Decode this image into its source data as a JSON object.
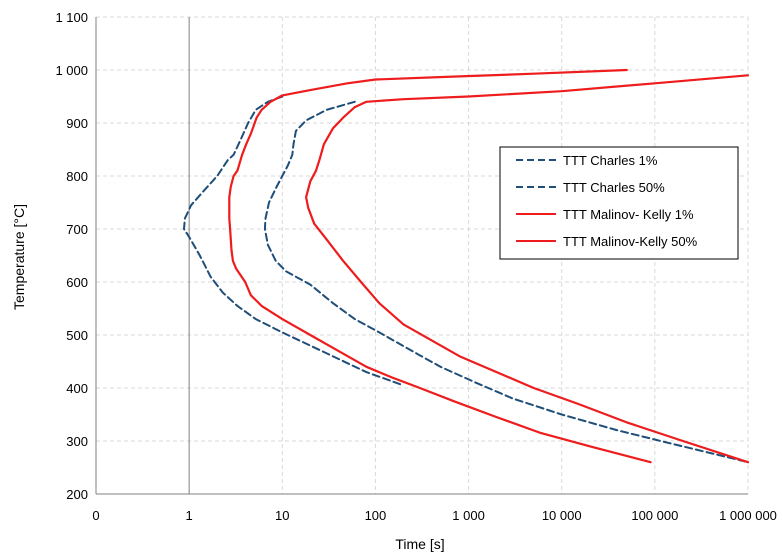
{
  "chart_data": {
    "type": "line",
    "xlabel": "Time [s]",
    "ylabel": "Temperature [°C]",
    "x_scale": "log",
    "x_ticks": [
      {
        "value": 0.1,
        "label": "0"
      },
      {
        "value": 1,
        "label": "1"
      },
      {
        "value": 10,
        "label": "10"
      },
      {
        "value": 100,
        "label": "100"
      },
      {
        "value": 1000,
        "label": "1 000"
      },
      {
        "value": 10000,
        "label": "10 000"
      },
      {
        "value": 100000,
        "label": "100 000"
      },
      {
        "value": 1000000,
        "label": "1 000 000"
      }
    ],
    "y_ticks": [
      {
        "value": 200,
        "label": "200"
      },
      {
        "value": 300,
        "label": "300"
      },
      {
        "value": 400,
        "label": "400"
      },
      {
        "value": 500,
        "label": "500"
      },
      {
        "value": 600,
        "label": "600"
      },
      {
        "value": 700,
        "label": "700"
      },
      {
        "value": 800,
        "label": "800"
      },
      {
        "value": 900,
        "label": "900"
      },
      {
        "value": 1000,
        "label": "1 000"
      },
      {
        "value": 1100,
        "label": "1 100"
      }
    ],
    "xlim": [
      0.1,
      1000000
    ],
    "ylim": [
      200,
      1100
    ],
    "grid": true,
    "legend_position": "right",
    "series": [
      {
        "name": "TTT Charles 1%",
        "color": "#1f4e79",
        "style": "dashed",
        "points": [
          [
            10,
            950
          ],
          [
            7,
            940
          ],
          [
            5.2,
            925
          ],
          [
            4.3,
            900
          ],
          [
            3.6,
            870
          ],
          [
            3.0,
            840
          ],
          [
            2.6,
            830
          ],
          [
            2.0,
            800
          ],
          [
            1.4,
            770
          ],
          [
            1.05,
            745
          ],
          [
            0.9,
            720
          ],
          [
            0.88,
            700
          ],
          [
            1.0,
            685
          ],
          [
            1.3,
            650
          ],
          [
            1.7,
            610
          ],
          [
            2.3,
            580
          ],
          [
            3.3,
            555
          ],
          [
            5.2,
            530
          ],
          [
            10,
            505
          ],
          [
            20,
            480
          ],
          [
            40,
            455
          ],
          [
            80,
            430
          ],
          [
            200,
            405
          ]
        ]
      },
      {
        "name": "TTT Charles 50%",
        "color": "#1f4e79",
        "style": "dashed",
        "points": [
          [
            60,
            940
          ],
          [
            30,
            925
          ],
          [
            18,
            905
          ],
          [
            14,
            885
          ],
          [
            13.2,
            860
          ],
          [
            12.8,
            840
          ],
          [
            11.5,
            820
          ],
          [
            10,
            800
          ],
          [
            8.7,
            780
          ],
          [
            7.2,
            750
          ],
          [
            6.6,
            720
          ],
          [
            6.5,
            700
          ],
          [
            7,
            670
          ],
          [
            8.5,
            640
          ],
          [
            11,
            620
          ],
          [
            20,
            595
          ],
          [
            35,
            560
          ],
          [
            60,
            530
          ],
          [
            110,
            505
          ],
          [
            220,
            475
          ],
          [
            500,
            440
          ],
          [
            1200,
            410
          ],
          [
            3000,
            380
          ],
          [
            10000,
            350
          ],
          [
            40000,
            320
          ],
          [
            150000,
            295
          ],
          [
            450000,
            275
          ],
          [
            1000000,
            260
          ]
        ]
      },
      {
        "name": "TTT Malinov- Kelly   1%",
        "color": "#ee1c1c",
        "style": "solid",
        "points": [
          [
            50000,
            1000
          ],
          [
            5000,
            993
          ],
          [
            800,
            988
          ],
          [
            100,
            982
          ],
          [
            50,
            975
          ],
          [
            20,
            962
          ],
          [
            10,
            952
          ],
          [
            7.5,
            940
          ],
          [
            6,
            925
          ],
          [
            5.3,
            910
          ],
          [
            4.6,
            880
          ],
          [
            4.1,
            860
          ],
          [
            3.7,
            840
          ],
          [
            3.3,
            810
          ],
          [
            3.0,
            800
          ],
          [
            2.8,
            780
          ],
          [
            2.7,
            760
          ],
          [
            2.7,
            720
          ],
          [
            2.75,
            700
          ],
          [
            2.85,
            660
          ],
          [
            2.95,
            640
          ],
          [
            3.2,
            625
          ],
          [
            4,
            600
          ],
          [
            4.6,
            575
          ],
          [
            6,
            555
          ],
          [
            10,
            530
          ],
          [
            20,
            500
          ],
          [
            40,
            470
          ],
          [
            80,
            440
          ],
          [
            150,
            420
          ],
          [
            300,
            400
          ],
          [
            700,
            375
          ],
          [
            2000,
            345
          ],
          [
            6000,
            315
          ],
          [
            20000,
            290
          ],
          [
            90000,
            260
          ]
        ]
      },
      {
        "name": "TTT Malinov-Kelly  50%",
        "color": "#ee1c1c",
        "style": "solid",
        "points": [
          [
            1000000,
            990
          ],
          [
            100000,
            975
          ],
          [
            10000,
            960
          ],
          [
            1000,
            950
          ],
          [
            200,
            945
          ],
          [
            80,
            940
          ],
          [
            60,
            930
          ],
          [
            45,
            910
          ],
          [
            35,
            890
          ],
          [
            28,
            860
          ],
          [
            25,
            830
          ],
          [
            23,
            810
          ],
          [
            20,
            790
          ],
          [
            18,
            760
          ],
          [
            19,
            740
          ],
          [
            22,
            710
          ],
          [
            30,
            680
          ],
          [
            45,
            640
          ],
          [
            70,
            600
          ],
          [
            110,
            560
          ],
          [
            200,
            520
          ],
          [
            400,
            490
          ],
          [
            800,
            460
          ],
          [
            2000,
            430
          ],
          [
            5000,
            400
          ],
          [
            15000,
            370
          ],
          [
            50000,
            335
          ],
          [
            200000,
            300
          ],
          [
            1000000,
            260
          ]
        ]
      }
    ]
  }
}
